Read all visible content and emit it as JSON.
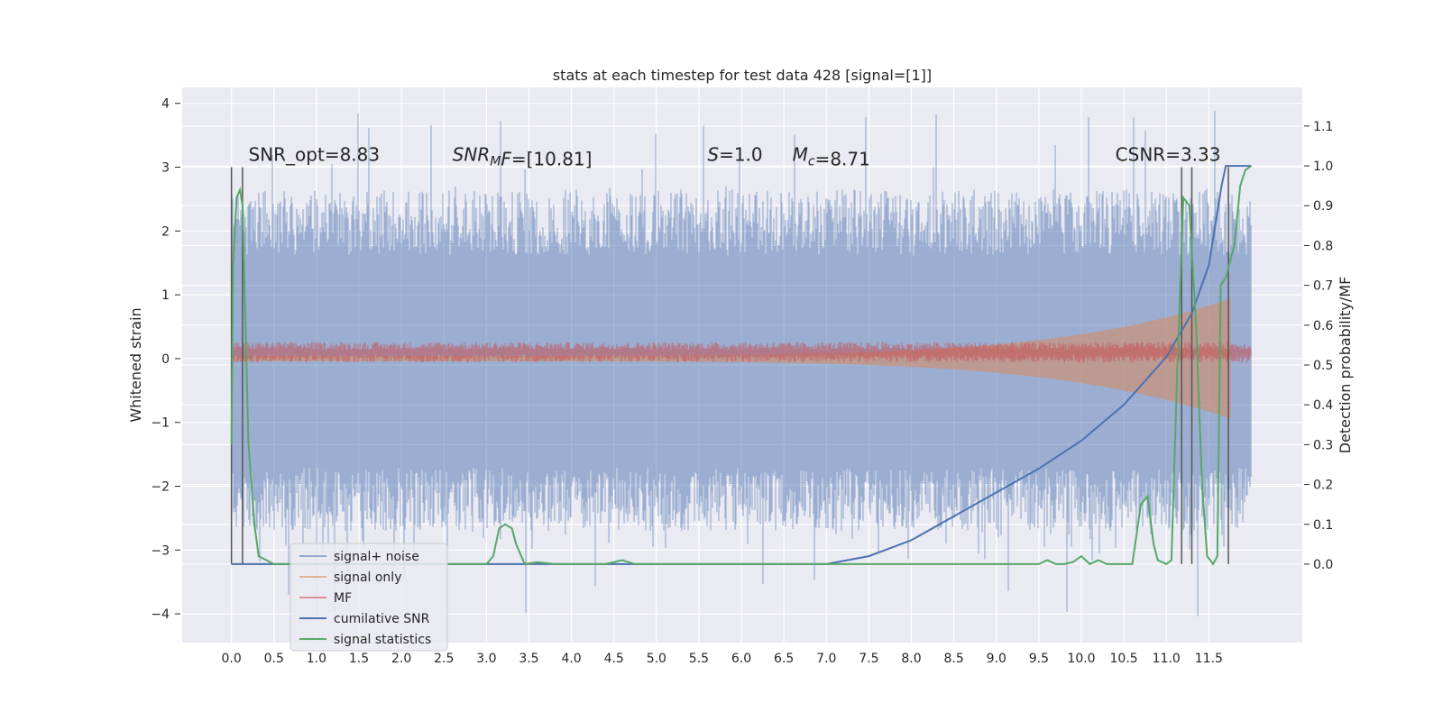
{
  "chart_data": {
    "type": "line",
    "title": "stats at each timestep for test data 428 [signal=[1]]",
    "ylabel": "Whitened strain",
    "y2label": "Detection probability/MF",
    "xlim": [
      -0.58,
      12.6
    ],
    "ylim": [
      -4.45,
      4.25
    ],
    "y2lim": [
      -0.197,
      1.197
    ],
    "xticks": [
      "0.0",
      "0.5",
      "1.0",
      "1.5",
      "2.0",
      "2.5",
      "3.0",
      "3.5",
      "4.0",
      "4.5",
      "5.0",
      "5.5",
      "6.0",
      "6.5",
      "7.0",
      "7.5",
      "8.0",
      "8.5",
      "9.0",
      "9.5",
      "10.0",
      "10.5",
      "11.0",
      "11.5"
    ],
    "yticks": [
      "4",
      "3",
      "2",
      "1",
      "0",
      "−1",
      "−2",
      "−3",
      "−4"
    ],
    "y2ticks": [
      "1.1",
      "1.0",
      "0.9",
      "0.8",
      "0.7",
      "0.6",
      "0.5",
      "0.4",
      "0.3",
      "0.2",
      "0.1",
      "0.0"
    ],
    "grid": true,
    "legend_position": "lower-left",
    "colors": {
      "background": "#eaeaf2",
      "grid": "#ffffff",
      "signal_noise": "#4c72b0",
      "signal_only": "#dd8452",
      "mf": "#c44e52",
      "cumulative_snr": "#4c72b0",
      "signal_statistics": "#55a868",
      "markers": "#555555"
    },
    "legend": [
      {
        "label": "signal+ noise",
        "key": "signal_noise",
        "alpha": 0.55
      },
      {
        "label": "signal only",
        "key": "signal_only",
        "alpha": 0.55
      },
      {
        "label": "MF",
        "key": "mf",
        "alpha": 0.55
      },
      {
        "label": "cumilative SNR",
        "key": "cumulative_snr",
        "alpha": 1
      },
      {
        "label": "signal statistics",
        "key": "signal_statistics",
        "alpha": 1
      }
    ],
    "annotations": [
      {
        "key": "snr_opt",
        "parts": [
          {
            "t": "SNR_opt=8.83"
          }
        ],
        "x": 0.2,
        "y": 3.1
      },
      {
        "key": "snr_mf",
        "parts": [
          {
            "t": "SNR",
            "i": true
          },
          {
            "t": "M",
            "i": true,
            "sub": true
          },
          {
            "t": "F",
            "i": true
          },
          {
            "t": "=[10.81]"
          }
        ],
        "x": 2.6,
        "y": 3.1
      },
      {
        "key": "s",
        "parts": [
          {
            "t": "S",
            "i": true
          },
          {
            "t": "=1.0"
          }
        ],
        "x": 5.6,
        "y": 3.1
      },
      {
        "key": "mc",
        "parts": [
          {
            "t": "M",
            "i": true
          },
          {
            "t": "c",
            "i": true,
            "sub": true
          },
          {
            "t": "=8.71"
          }
        ],
        "x": 6.6,
        "y": 3.1
      },
      {
        "key": "csnr",
        "parts": [
          {
            "t": "CSNR=3.33"
          }
        ],
        "x": 10.4,
        "y": 3.1
      }
    ],
    "markers": {
      "x": [
        0.0,
        0.13,
        11.18,
        11.3,
        11.73
      ],
      "y_range": [
        -3.22,
        3.0
      ]
    },
    "signal_noise": {
      "x_range": [
        0.0,
        12.0
      ],
      "envelope_top": 2.3,
      "envelope_bottom": -2.2,
      "spike_max": 3.9,
      "spike_min": -4.1
    },
    "signal_only": {
      "x_range": [
        0.0,
        11.75
      ],
      "note": "chirp amplitude growing to ~1.0 near merger"
    },
    "mf": {
      "x_range": [
        0.0,
        12.0
      ],
      "level": 0.1
    },
    "cumulative_snr": {
      "x": [
        0.0,
        7.0,
        7.5,
        8.0,
        8.5,
        9.0,
        9.5,
        10.0,
        10.5,
        11.0,
        11.3,
        11.5,
        11.65,
        11.7,
        12.0
      ],
      "y": [
        0.0,
        0.0,
        0.02,
        0.06,
        0.12,
        0.18,
        0.24,
        0.31,
        0.4,
        0.52,
        0.63,
        0.75,
        0.95,
        1.0,
        1.0
      ]
    },
    "signal_statistics": {
      "x": [
        0.0,
        0.02,
        0.06,
        0.1,
        0.13,
        0.2,
        0.27,
        0.32,
        0.5,
        2.0,
        3.0,
        3.08,
        3.15,
        3.22,
        3.3,
        3.35,
        3.45,
        3.6,
        3.8,
        4.0,
        4.4,
        4.6,
        4.75,
        5.0,
        7.0,
        9.5,
        9.6,
        9.7,
        9.8,
        9.9,
        10.0,
        10.1,
        10.2,
        10.3,
        10.4,
        10.6,
        10.7,
        10.78,
        10.85,
        10.9,
        11.0,
        11.06,
        11.13,
        11.2,
        11.27,
        11.35,
        11.42,
        11.48,
        11.55,
        11.6,
        11.64,
        11.7,
        11.8,
        11.87,
        11.93,
        12.0
      ],
      "y": [
        0.3,
        0.75,
        0.92,
        0.94,
        0.9,
        0.3,
        0.1,
        0.02,
        0.0,
        0.0,
        0.0,
        0.02,
        0.09,
        0.1,
        0.09,
        0.05,
        0.0,
        0.005,
        0.0,
        0.0,
        0.0,
        0.01,
        0.0,
        0.0,
        0.0,
        0.0,
        0.01,
        0.0,
        0.0,
        0.005,
        0.02,
        0.0,
        0.01,
        0.0,
        0.0,
        0.0,
        0.15,
        0.17,
        0.05,
        0.01,
        0.0,
        0.01,
        0.5,
        0.92,
        0.9,
        0.6,
        0.2,
        0.02,
        0.0,
        0.02,
        0.7,
        0.72,
        0.8,
        0.95,
        0.99,
        1.0
      ]
    }
  }
}
